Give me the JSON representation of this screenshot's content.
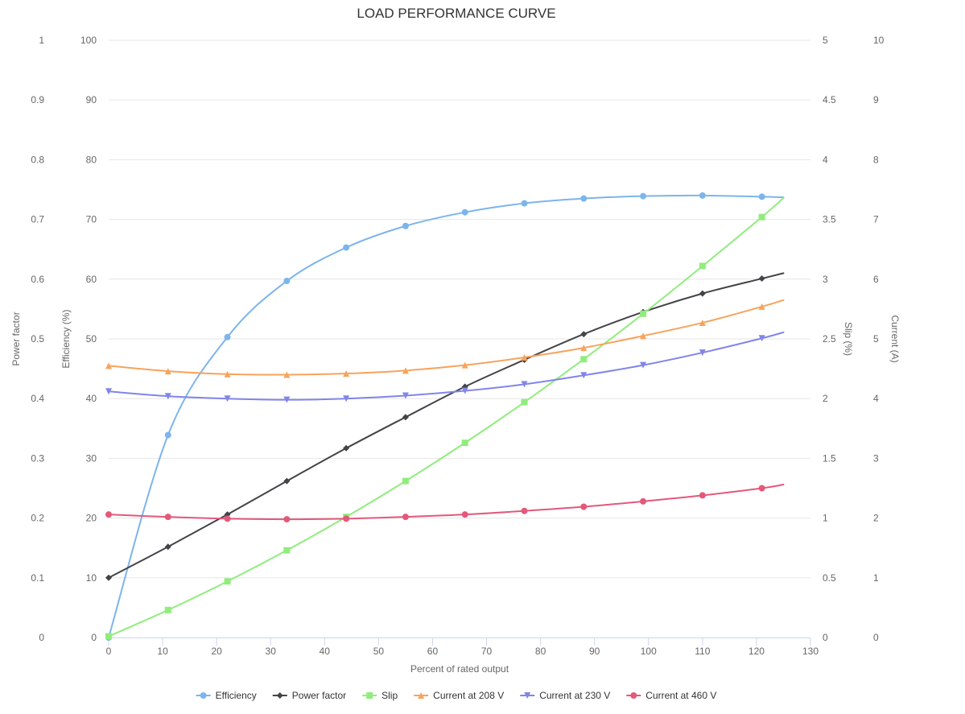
{
  "chart_data": {
    "type": "line",
    "title": "LOAD PERFORMANCE CURVE",
    "xlabel": "Percent of rated output",
    "xlim": [
      0,
      130
    ],
    "xticks": [
      0,
      10,
      20,
      30,
      40,
      50,
      60,
      70,
      80,
      90,
      100,
      110,
      120,
      130
    ],
    "y_axes": [
      {
        "id": "pf",
        "label": "Power factor",
        "lim": [
          0,
          1
        ],
        "ticks": [
          0,
          0.1,
          0.2,
          0.3,
          0.4,
          0.5,
          0.6,
          0.7,
          0.8,
          0.9,
          1
        ],
        "tick_labels": [
          "0",
          "0.1",
          "0.2",
          "0.3",
          "0.4",
          "0.5",
          "0.6",
          "0.7",
          "0.8",
          "0.9",
          "1"
        ],
        "side": "left"
      },
      {
        "id": "eff",
        "label": "Efficiency (%)",
        "lim": [
          0,
          100
        ],
        "ticks": [
          0,
          10,
          20,
          30,
          40,
          50,
          60,
          70,
          80,
          90,
          100
        ],
        "tick_labels": [
          "0",
          "10",
          "20",
          "30",
          "40",
          "50",
          "60",
          "70",
          "80",
          "90",
          "100"
        ],
        "side": "left"
      },
      {
        "id": "slip",
        "label": "Slip (%)",
        "lim": [
          0,
          5
        ],
        "ticks": [
          0,
          0.5,
          1,
          1.5,
          2,
          2.5,
          3,
          3.5,
          4,
          4.5,
          5
        ],
        "tick_labels": [
          "0",
          "0.5",
          "1",
          "1.5",
          "2",
          "2.5",
          "3",
          "3.5",
          "4",
          "4.5",
          "5"
        ],
        "side": "right"
      },
      {
        "id": "cur",
        "label": "Current (A)",
        "lim": [
          0,
          10
        ],
        "ticks": [
          0,
          1,
          2,
          3,
          4,
          5,
          6,
          7,
          8,
          9,
          10
        ],
        "tick_labels": [
          "0",
          "1",
          "2",
          "3",
          "4",
          "5",
          "6",
          "7",
          "8",
          "9",
          "10"
        ],
        "side": "right"
      }
    ],
    "grid": true,
    "legend_position": "bottom-center",
    "series": [
      {
        "name": "Efficiency",
        "axis": "eff",
        "color": "#7cb5ec",
        "marker": "circle",
        "x": [
          0,
          11,
          22,
          33,
          44,
          55,
          66,
          77,
          88,
          99,
          110,
          121,
          125
        ],
        "y": [
          0,
          33.9,
          50.3,
          59.7,
          65.3,
          68.9,
          71.2,
          72.7,
          73.5,
          73.9,
          74.0,
          73.8,
          73.7
        ],
        "marker_count": 12
      },
      {
        "name": "Power factor",
        "axis": "pf",
        "color": "#434348",
        "marker": "diamond",
        "x": [
          0,
          11,
          22,
          33,
          44,
          55,
          66,
          77,
          88,
          99,
          110,
          121,
          125
        ],
        "y": [
          0.1,
          0.152,
          0.206,
          0.262,
          0.317,
          0.369,
          0.42,
          0.465,
          0.508,
          0.545,
          0.576,
          0.601,
          0.61
        ],
        "marker_count": 12
      },
      {
        "name": "Slip",
        "axis": "slip",
        "color": "#90ed7d",
        "marker": "square",
        "x": [
          0,
          11,
          22,
          33,
          44,
          55,
          66,
          77,
          88,
          99,
          110,
          121,
          125
        ],
        "y": [
          0.01,
          0.23,
          0.47,
          0.73,
          1.01,
          1.31,
          1.63,
          1.97,
          2.33,
          2.71,
          3.11,
          3.52,
          3.68
        ],
        "marker_count": 12
      },
      {
        "name": "Current at 208 V",
        "axis": "cur",
        "color": "#f7a35c",
        "marker": "triangle",
        "x": [
          0,
          11,
          22,
          33,
          44,
          55,
          66,
          77,
          88,
          99,
          110,
          121,
          125
        ],
        "y": [
          4.55,
          4.46,
          4.41,
          4.4,
          4.42,
          4.47,
          4.56,
          4.69,
          4.85,
          5.05,
          5.27,
          5.54,
          5.65
        ],
        "marker_count": 12
      },
      {
        "name": "Current at 230 V",
        "axis": "cur",
        "color": "#8085e9",
        "marker": "triangle-down",
        "x": [
          0,
          11,
          22,
          33,
          44,
          55,
          66,
          77,
          88,
          99,
          110,
          121,
          125
        ],
        "y": [
          4.12,
          4.04,
          4.0,
          3.98,
          4.0,
          4.05,
          4.13,
          4.24,
          4.39,
          4.56,
          4.77,
          5.01,
          5.11
        ],
        "marker_count": 12
      },
      {
        "name": "Current at 460 V",
        "axis": "cur",
        "color": "#e4587a",
        "marker": "circle",
        "x": [
          0,
          11,
          22,
          33,
          44,
          55,
          66,
          77,
          88,
          99,
          110,
          121,
          125
        ],
        "y": [
          2.06,
          2.02,
          1.99,
          1.98,
          1.99,
          2.02,
          2.06,
          2.12,
          2.19,
          2.28,
          2.38,
          2.5,
          2.56
        ],
        "marker_count": 12
      }
    ]
  }
}
